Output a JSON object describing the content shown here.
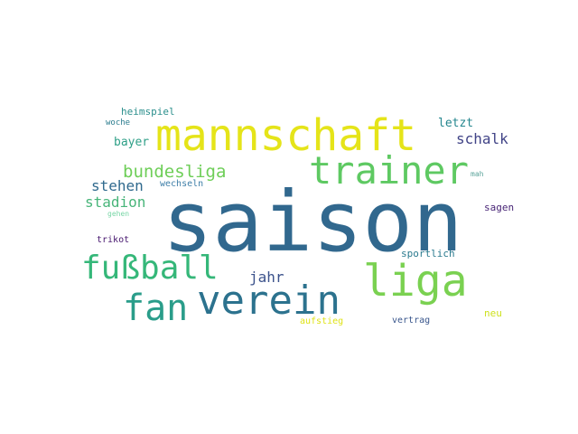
{
  "wordcloud": {
    "words": {
      "saison": {
        "text": "saison",
        "color": "#31688e"
      },
      "mannschaft": {
        "text": "mannschaft",
        "color": "#e5e419"
      },
      "trainer": {
        "text": "trainer",
        "color": "#5ec962"
      },
      "verein": {
        "text": "verein",
        "color": "#2c728e"
      },
      "liga": {
        "text": "liga",
        "color": "#7ad151"
      },
      "fussball": {
        "text": "fußball",
        "color": "#35b779"
      },
      "fan": {
        "text": "fan",
        "color": "#2a9d8a"
      },
      "bundesliga": {
        "text": "bundesliga",
        "color": "#6ece58"
      },
      "schalk": {
        "text": "schalk",
        "color": "#414487"
      },
      "stehen": {
        "text": "stehen",
        "color": "#306a8e"
      },
      "stadion": {
        "text": "stadion",
        "color": "#48b57a"
      },
      "jahr": {
        "text": "jahr",
        "color": "#3b528b"
      },
      "bayer": {
        "text": "bayer",
        "color": "#2e9f87"
      },
      "letzt": {
        "text": "letzt",
        "color": "#24868e"
      },
      "heimspiel": {
        "text": "heimspiel",
        "color": "#2b8f8c"
      },
      "woche": {
        "text": "woche",
        "color": "#2b7c8e"
      },
      "wechseln": {
        "text": "wechseln",
        "color": "#3f7fa8"
      },
      "gehen": {
        "text": "gehen",
        "color": "#78d6a6"
      },
      "sagen": {
        "text": "sagen",
        "color": "#482576"
      },
      "mah": {
        "text": "mah",
        "color": "#5aa39a"
      },
      "trikot": {
        "text": "trikot",
        "color": "#46166e"
      },
      "sportlich": {
        "text": "sportlich",
        "color": "#2a7a8e"
      },
      "aufstieg": {
        "text": "aufstieg",
        "color": "#dfe318"
      },
      "vertrag": {
        "text": "vertrag",
        "color": "#39568c"
      },
      "neu": {
        "text": "neu",
        "color": "#cde11d"
      }
    }
  }
}
